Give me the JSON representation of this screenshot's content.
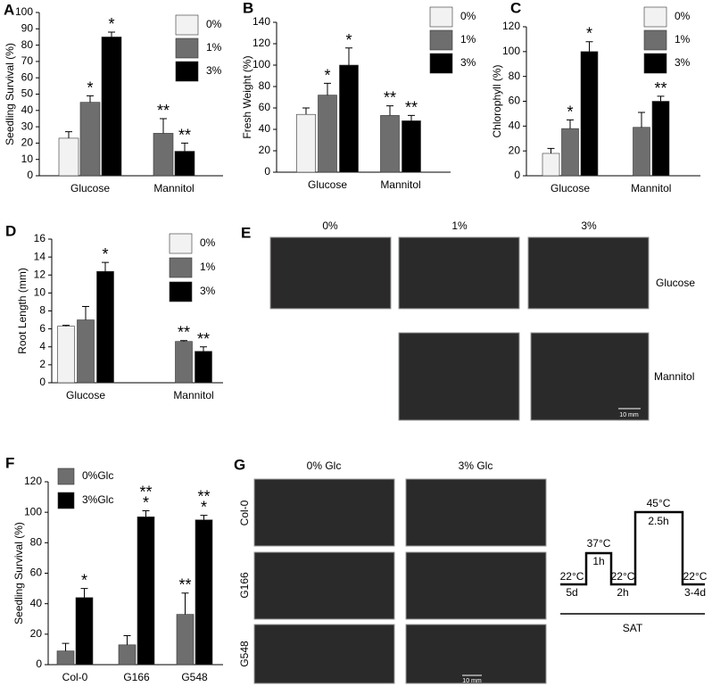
{
  "chart_data": [
    {
      "type": "bar",
      "panel": "A",
      "y_label": "Seedling Survival (%)",
      "categories": [
        "Glucose",
        "Mannitol"
      ],
      "series": [
        {
          "name": "0%",
          "color": "#f2f2f2",
          "values": [
            23,
            null
          ],
          "errors": [
            4,
            null
          ],
          "annotations": [
            null,
            null
          ]
        },
        {
          "name": "1%",
          "color": "#6e6e6e",
          "values": [
            45,
            26
          ],
          "errors": [
            4,
            9
          ],
          "annotations": [
            "*",
            "**"
          ]
        },
        {
          "name": "3%",
          "color": "#000000",
          "values": [
            85,
            15
          ],
          "errors": [
            3,
            5
          ],
          "annotations": [
            "*",
            "**"
          ]
        }
      ],
      "ylim": [
        0,
        100
      ],
      "yticks": [
        0,
        10,
        20,
        30,
        40,
        50,
        60,
        70,
        80,
        90,
        100
      ],
      "legend": "upper right"
    },
    {
      "type": "bar",
      "panel": "B",
      "y_label": "Fresh Weight (%)",
      "categories": [
        "Glucose",
        "Mannitol"
      ],
      "series": [
        {
          "name": "0%",
          "color": "#f2f2f2",
          "values": [
            54,
            null
          ],
          "errors": [
            6,
            null
          ],
          "annotations": [
            null,
            null
          ]
        },
        {
          "name": "1%",
          "color": "#6e6e6e",
          "values": [
            72,
            53
          ],
          "errors": [
            11,
            9
          ],
          "annotations": [
            "*",
            "**"
          ]
        },
        {
          "name": "3%",
          "color": "#000000",
          "values": [
            100,
            48
          ],
          "errors": [
            16,
            5
          ],
          "annotations": [
            "*",
            "**"
          ]
        }
      ],
      "ylim": [
        0,
        140
      ],
      "yticks": [
        0,
        20,
        40,
        60,
        80,
        100,
        120,
        140
      ],
      "legend": "upper right"
    },
    {
      "type": "bar",
      "panel": "C",
      "y_label": "Chlorophyll (%)",
      "categories": [
        "Glucose",
        "Mannitol"
      ],
      "series": [
        {
          "name": "0%",
          "color": "#f2f2f2",
          "values": [
            18,
            null
          ],
          "errors": [
            4,
            null
          ],
          "annotations": [
            null,
            null
          ]
        },
        {
          "name": "1%",
          "color": "#6e6e6e",
          "values": [
            38,
            39
          ],
          "errors": [
            7,
            12
          ],
          "annotations": [
            "*",
            null
          ]
        },
        {
          "name": "3%",
          "color": "#000000",
          "values": [
            100,
            60
          ],
          "errors": [
            8,
            4
          ],
          "annotations": [
            "*",
            "**"
          ]
        }
      ],
      "ylim": [
        0,
        120
      ],
      "yticks": [
        0,
        20,
        40,
        60,
        80,
        100,
        120
      ],
      "legend": "upper right"
    },
    {
      "type": "bar",
      "panel": "D",
      "y_label": "Root Length (mm)",
      "categories": [
        "Glucose",
        "Mannitol"
      ],
      "series": [
        {
          "name": "0%",
          "color": "#f2f2f2",
          "values": [
            6.3,
            null
          ],
          "errors": [
            0.1,
            null
          ],
          "annotations": [
            null,
            null
          ]
        },
        {
          "name": "1%",
          "color": "#6e6e6e",
          "values": [
            7.0,
            4.6
          ],
          "errors": [
            1.5,
            0.1
          ],
          "annotations": [
            null,
            "**"
          ]
        },
        {
          "name": "3%",
          "color": "#000000",
          "values": [
            12.4,
            3.5
          ],
          "errors": [
            1.0,
            0.5
          ],
          "annotations": [
            "*",
            "**"
          ]
        }
      ],
      "ylim": [
        0,
        16
      ],
      "yticks": [
        0,
        2,
        4,
        6,
        8,
        10,
        12,
        14,
        16
      ],
      "legend": "upper right"
    },
    {
      "type": "bar",
      "panel": "F",
      "y_label": "Seedling Survival (%)",
      "categories": [
        "Col-0",
        "G166",
        "G548"
      ],
      "series": [
        {
          "name": "0%Glc",
          "color": "#6e6e6e",
          "values": [
            9,
            13,
            33
          ],
          "errors": [
            5,
            6,
            14
          ],
          "annotations": [
            null,
            null,
            "**"
          ]
        },
        {
          "name": "3%Glc",
          "color": "#000000",
          "values": [
            44,
            97,
            95
          ],
          "errors": [
            6,
            4,
            3
          ],
          "annotations": [
            "*",
            "**\n*",
            "**\n*"
          ]
        }
      ],
      "ylim": [
        0,
        120
      ],
      "yticks": [
        0,
        20,
        40,
        60,
        80,
        100,
        120
      ],
      "legend": "upper left"
    }
  ],
  "panel_e": {
    "panel": "E",
    "columns": [
      "0%",
      "1%",
      "3%"
    ],
    "rows": [
      "Glucose",
      "Mannitol"
    ],
    "scale": "10 mm"
  },
  "panel_g": {
    "panel": "G",
    "columns": [
      "0% Glc",
      "3% Glc"
    ],
    "rows": [
      "Col-0",
      "G166",
      "G548"
    ],
    "scale": "10 mm",
    "steps": [
      {
        "temp": "22°C",
        "time": "5d"
      },
      {
        "temp": "37°C",
        "time": "1h"
      },
      {
        "temp": "22°C",
        "time": "2h"
      },
      {
        "temp": "45°C",
        "time": "2.5h"
      },
      {
        "temp": "22°C",
        "time": "3-4d"
      }
    ],
    "treatment": "SAT"
  }
}
